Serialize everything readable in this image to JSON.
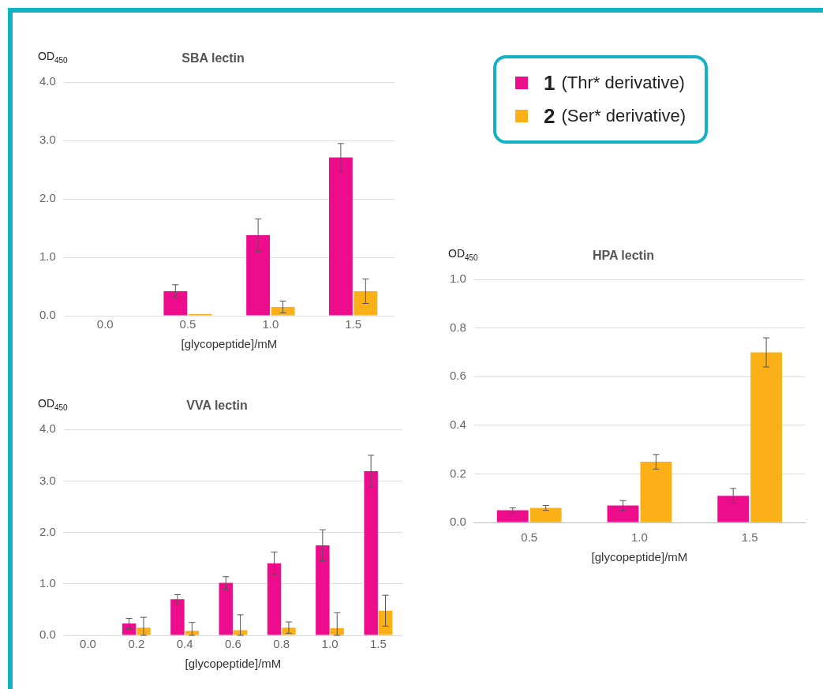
{
  "chart_data": [
    {
      "type": "bar",
      "title": "SBA lectin",
      "xlabel": "[glycopeptide]/mM",
      "ylabel": "OD$_{450}$",
      "categories": [
        "0.0",
        "0.5",
        "1.0",
        "1.5"
      ],
      "ylim": [
        0,
        4
      ],
      "yticks": [
        {
          "value": 0,
          "label": "0.0"
        },
        {
          "value": 1,
          "label": "1.0"
        },
        {
          "value": 2,
          "label": "2.0"
        },
        {
          "value": 3,
          "label": "3.0"
        },
        {
          "value": 4,
          "label": "4.0"
        }
      ],
      "grid": "y",
      "legend": "right",
      "series": [
        {
          "name": "1 (Thr* derivative)",
          "color": "#ec0c8c",
          "values": [
            null,
            0.42,
            1.38,
            2.71
          ],
          "errors": [
            null,
            0.11,
            0.28,
            0.24
          ]
        },
        {
          "name": "2 (Ser* derivative)",
          "color": "#fbb017",
          "values": [
            null,
            0.02,
            0.15,
            0.42
          ],
          "errors": [
            null,
            null,
            0.1,
            0.21
          ]
        }
      ]
    },
    {
      "type": "bar",
      "title": "HPA lectin",
      "xlabel": "[glycopeptide]/mM",
      "ylabel": "OD$_{450}$",
      "categories": [
        "0.5",
        "1.0",
        "1.5"
      ],
      "ylim": [
        0,
        1
      ],
      "yticks": [
        {
          "value": 0,
          "label": "0.0"
        },
        0.2,
        0.4,
        0.6,
        0.8,
        {
          "value": 1,
          "label": "1.0"
        }
      ],
      "grid": "y",
      "series": [
        {
          "color": "#ec0c8c",
          "values": [
            0.05,
            0.07,
            0.11
          ],
          "errors": [
            0.01,
            0.02,
            0.03
          ]
        },
        {
          "color": "#fbb017",
          "values": [
            0.06,
            0.25,
            0.7
          ],
          "errors": [
            0.01,
            0.03,
            0.06
          ]
        }
      ]
    },
    {
      "type": "bar",
      "title": "VVA lectin",
      "xlabel": "[glycopeptide]/mM",
      "ylabel": "OD$_{450}$",
      "categories": [
        "0.0",
        "0.2",
        "0.4",
        "0.6",
        "0.8",
        "1.0",
        "1.5"
      ],
      "ylim": [
        0,
        4
      ],
      "yticks": [
        {
          "value": 0,
          "label": "0.0"
        },
        {
          "value": 1,
          "label": "1.0"
        },
        {
          "value": 2,
          "label": "2.0"
        },
        {
          "value": 3,
          "label": "3.0"
        },
        {
          "value": 4,
          "label": "4.0"
        }
      ],
      "grid": "y",
      "series": [
        {
          "color": "#ec0c8c",
          "values": [
            null,
            0.23,
            0.7,
            1.02,
            1.4,
            1.75,
            3.19
          ],
          "errors": [
            null,
            0.1,
            0.09,
            0.12,
            0.22,
            0.3,
            0.31
          ]
        },
        {
          "color": "#fbb017",
          "values": [
            null,
            0.15,
            0.09,
            0.1,
            0.15,
            0.14,
            0.48
          ],
          "errors": [
            null,
            [
              0,
              0.35
            ],
            [
              0,
              0.25
            ],
            [
              0,
              0.4
            ],
            0.11,
            [
              0,
              0.44
            ],
            0.3
          ]
        }
      ]
    }
  ]
}
